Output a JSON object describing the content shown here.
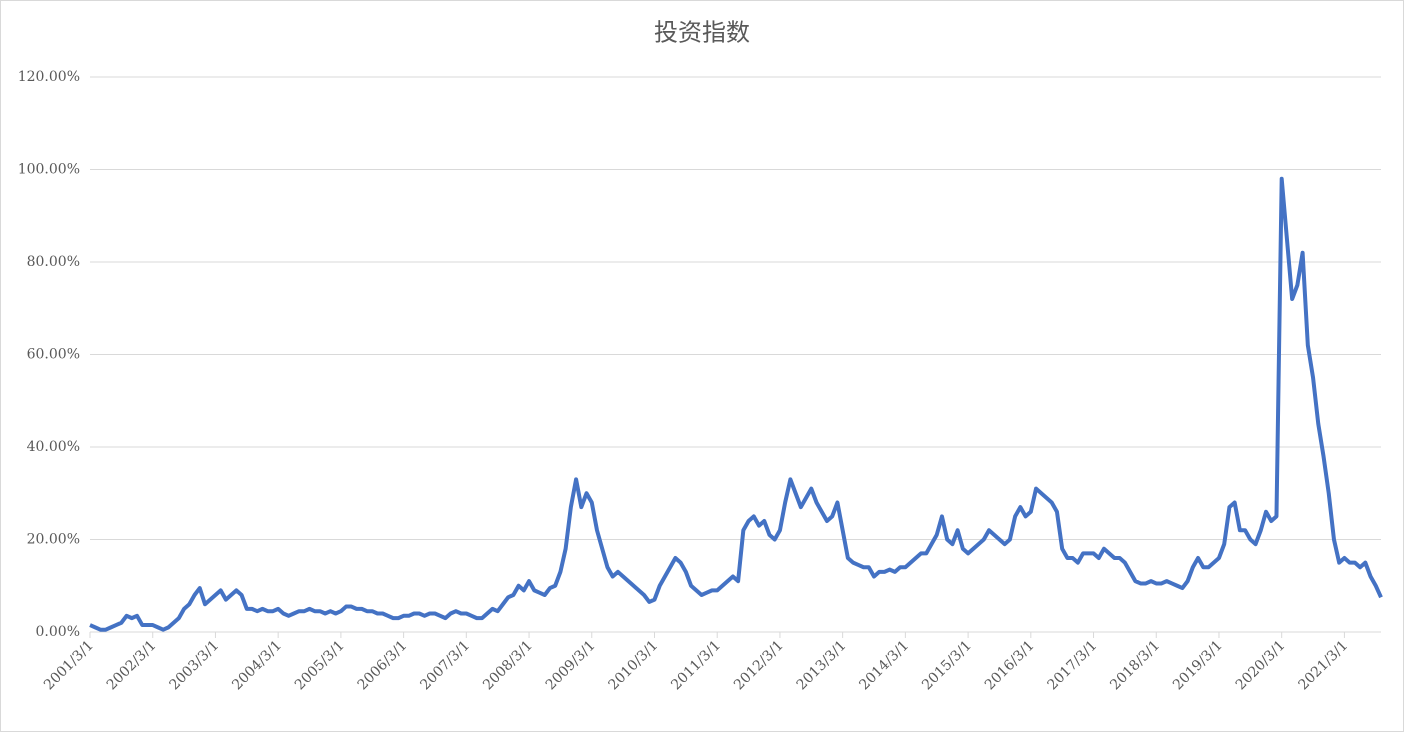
{
  "chart_data": {
    "type": "line",
    "title": "投资指数",
    "categories": [
      "2001/3/1",
      null,
      null,
      null,
      null,
      null,
      null,
      null,
      null,
      null,
      null,
      null,
      "2002/3/1",
      null,
      null,
      null,
      null,
      null,
      null,
      null,
      null,
      null,
      null,
      null,
      "2003/3/1",
      null,
      null,
      null,
      null,
      null,
      null,
      null,
      null,
      null,
      null,
      null,
      "2004/3/1",
      null,
      null,
      null,
      null,
      null,
      null,
      null,
      null,
      null,
      null,
      null,
      "2005/3/1",
      null,
      null,
      null,
      null,
      null,
      null,
      null,
      null,
      null,
      null,
      null,
      "2006/3/1",
      null,
      null,
      null,
      null,
      null,
      null,
      null,
      null,
      null,
      null,
      null,
      "2007/3/1",
      null,
      null,
      null,
      null,
      null,
      null,
      null,
      null,
      null,
      null,
      null,
      "2008/3/1",
      null,
      null,
      null,
      null,
      null,
      null,
      null,
      null,
      null,
      null,
      null,
      "2009/3/1",
      null,
      null,
      null,
      null,
      null,
      null,
      null,
      null,
      null,
      null,
      null,
      "2010/3/1",
      null,
      null,
      null,
      null,
      null,
      null,
      null,
      null,
      null,
      null,
      null,
      "2011/3/1",
      null,
      null,
      null,
      null,
      null,
      null,
      null,
      null,
      null,
      null,
      null,
      "2012/3/1",
      null,
      null,
      null,
      null,
      null,
      null,
      null,
      null,
      null,
      null,
      null,
      "2013/3/1",
      null,
      null,
      null,
      null,
      null,
      null,
      null,
      null,
      null,
      null,
      null,
      "2014/3/1",
      null,
      null,
      null,
      null,
      null,
      null,
      null,
      null,
      null,
      null,
      null,
      "2015/3/1",
      null,
      null,
      null,
      null,
      null,
      null,
      null,
      null,
      null,
      null,
      null,
      "2016/3/1",
      null,
      null,
      null,
      null,
      null,
      null,
      null,
      null,
      null,
      null,
      null,
      "2017/3/1",
      null,
      null,
      null,
      null,
      null,
      null,
      null,
      null,
      null,
      null,
      null,
      "2018/3/1",
      null,
      null,
      null,
      null,
      null,
      null,
      null,
      null,
      null,
      null,
      null,
      "2019/3/1",
      null,
      null,
      null,
      null,
      null,
      null,
      null,
      null,
      null,
      null,
      null,
      "2020/3/1",
      null,
      null,
      null,
      null,
      null,
      null,
      null,
      null,
      null,
      null,
      null,
      "2021/3/1",
      null,
      null,
      null,
      null,
      null,
      null,
      null
    ],
    "series": [
      {
        "color": "#4472c4",
        "values": [
          1.5,
          1,
          0.5,
          0.5,
          1,
          1.5,
          2,
          3.5,
          3,
          3.5,
          1.5,
          1.5,
          1.5,
          1,
          0.5,
          1,
          2,
          3,
          5,
          6,
          8,
          9.5,
          6,
          7,
          8,
          9,
          7,
          8,
          9,
          8,
          5,
          5,
          4.5,
          5,
          4.5,
          4.5,
          5,
          4,
          3.5,
          4,
          4.5,
          4.5,
          5,
          4.5,
          4.5,
          4,
          4.5,
          4,
          4.5,
          5.5,
          5.5,
          5,
          5,
          4.5,
          4.5,
          4,
          4,
          3.5,
          3,
          3,
          3.5,
          3.5,
          4,
          4,
          3.5,
          4,
          4,
          3.5,
          3,
          4,
          4.5,
          4,
          4,
          3.5,
          3,
          3,
          4,
          5,
          4.5,
          6,
          7.5,
          8,
          10,
          9,
          11,
          9,
          8.5,
          8,
          9.5,
          10,
          13,
          18,
          27,
          33,
          27,
          30,
          28,
          22,
          18,
          14,
          12,
          13,
          12,
          11,
          10,
          9,
          8,
          6.5,
          7,
          10,
          12,
          14,
          16,
          15,
          13,
          10,
          9,
          8,
          8.5,
          9,
          9,
          10,
          11,
          12,
          11,
          22,
          24,
          25,
          23,
          24,
          21,
          20,
          22,
          28,
          33,
          30,
          27,
          29,
          31,
          28,
          26,
          24,
          25,
          28,
          22,
          16,
          15,
          14.5,
          14,
          14,
          12,
          13,
          13,
          13.5,
          13,
          14,
          14,
          15,
          16,
          17,
          17,
          19,
          21,
          25,
          20,
          19,
          22,
          18,
          17,
          18,
          19,
          20,
          22,
          21,
          20,
          19,
          20,
          25,
          27,
          25,
          26,
          31,
          30,
          29,
          28,
          26,
          18,
          16,
          16,
          15,
          17,
          17,
          17,
          16,
          18,
          17,
          16,
          16,
          15,
          13,
          11,
          10.5,
          10.5,
          11,
          10.5,
          10.5,
          11,
          10.5,
          10,
          9.5,
          11,
          14,
          16,
          14,
          14,
          15,
          16,
          19,
          27,
          28,
          22,
          22,
          20,
          19,
          22,
          26,
          24,
          25,
          98,
          85,
          72,
          75,
          82,
          62,
          55,
          45,
          38,
          30,
          20,
          15,
          16,
          15,
          15,
          14,
          15,
          12,
          10,
          7.5
        ]
      }
    ],
    "ylim": [
      0,
      120
    ],
    "yticks": [
      {
        "value": 0,
        "label": "0.00%"
      },
      {
        "value": 20,
        "label": "20.00%"
      },
      {
        "value": 40,
        "label": "40.00%"
      },
      {
        "value": 60,
        "label": "60.00%"
      },
      {
        "value": 80,
        "label": "80.00%"
      },
      {
        "value": 100,
        "label": "100.00%"
      },
      {
        "value": 120,
        "label": "120.00%"
      }
    ],
    "grid": true
  }
}
